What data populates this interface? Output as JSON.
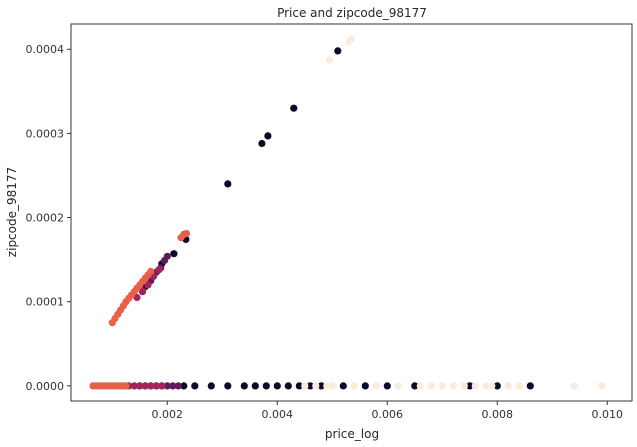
{
  "chart_data": {
    "type": "scatter",
    "title": "Price and zipcode_98177",
    "xlabel": "price_log",
    "ylabel": "zipcode_98177",
    "xlim": [
      0.00025,
      0.01045
    ],
    "ylim": [
      -1.8e-05,
      0.00043
    ],
    "xticks": [
      {
        "value": 0.002,
        "label": "0.002"
      },
      {
        "value": 0.004,
        "label": "0.004"
      },
      {
        "value": 0.006,
        "label": "0.006"
      },
      {
        "value": 0.008,
        "label": "0.008"
      },
      {
        "value": 0.01,
        "label": "0.010"
      }
    ],
    "yticks": [
      {
        "value": 0.0,
        "label": "0.0000"
      },
      {
        "value": 0.0001,
        "label": "0.0001"
      },
      {
        "value": 0.0002,
        "label": "0.0002"
      },
      {
        "value": 0.0003,
        "label": "0.0003"
      },
      {
        "value": 0.0004,
        "label": "0.0004"
      }
    ],
    "grid": false,
    "legend": "none",
    "colors": {
      "near_black": "#0d0a29",
      "purple": "#5e1e5b",
      "magenta": "#a3245c",
      "coral": "#e8604a",
      "cream": "#faebdd",
      "frame": "#333333"
    },
    "series": [
      {
        "color": "near_black",
        "points": [
          [
            0.0016,
            0.000118
          ],
          [
            0.0017,
            0.00013
          ],
          [
            0.0019,
            0.000145
          ],
          [
            0.00212,
            0.000157
          ],
          [
            0.00234,
            0.000174
          ],
          [
            0.0031,
            0.00024
          ],
          [
            0.00372,
            0.000288
          ],
          [
            0.00383,
            0.000297
          ],
          [
            0.0043,
            0.00033
          ],
          [
            0.0051,
            0.000398
          ],
          [
            0.0023,
            0.0
          ],
          [
            0.0025,
            0.0
          ],
          [
            0.0028,
            0.0
          ],
          [
            0.0031,
            0.0
          ],
          [
            0.0034,
            0.0
          ],
          [
            0.0036,
            0.0
          ],
          [
            0.0038,
            0.0
          ],
          [
            0.004,
            0.0
          ],
          [
            0.0042,
            0.0
          ],
          [
            0.0044,
            0.0
          ],
          [
            0.0046,
            0.0
          ],
          [
            0.0048,
            0.0
          ],
          [
            0.0052,
            0.0
          ],
          [
            0.0056,
            0.0
          ],
          [
            0.006,
            0.0
          ],
          [
            0.0065,
            0.0
          ],
          [
            0.0075,
            0.0
          ],
          [
            0.008,
            0.0
          ],
          [
            0.0086,
            0.0
          ]
        ]
      },
      {
        "color": "purple",
        "points": [
          [
            0.00155,
            0.000112
          ],
          [
            0.0017,
            0.000125
          ],
          [
            0.0018,
            0.000135
          ],
          [
            0.00188,
            0.00014
          ],
          [
            0.00195,
            0.000149
          ],
          [
            0.002,
            0.000154
          ],
          [
            0.0015,
            0.0
          ],
          [
            0.0016,
            0.0
          ],
          [
            0.0017,
            0.0
          ],
          [
            0.0018,
            0.0
          ],
          [
            0.0019,
            0.0
          ],
          [
            0.002,
            0.0
          ],
          [
            0.0021,
            0.0
          ],
          [
            0.0022,
            0.0
          ]
        ]
      },
      {
        "color": "magenta",
        "points": [
          [
            0.00145,
            0.000105
          ],
          [
            0.00155,
            0.000113
          ],
          [
            0.00165,
            0.00012
          ],
          [
            0.00175,
            0.00013
          ],
          [
            0.00185,
            0.000138
          ],
          [
            0.0013,
            0.0
          ],
          [
            0.0014,
            0.0
          ],
          [
            0.0015,
            0.0
          ],
          [
            0.0016,
            0.0
          ],
          [
            0.0017,
            0.0
          ],
          [
            0.0018,
            0.0
          ],
          [
            0.0019,
            0.0
          ]
        ]
      },
      {
        "color": "coral",
        "points": [
          [
            0.001,
            7.5e-05
          ],
          [
            0.00105,
            8e-05
          ],
          [
            0.0011,
            8.5e-05
          ],
          [
            0.00115,
            9e-05
          ],
          [
            0.0012,
            9.5e-05
          ],
          [
            0.00125,
            0.0001
          ],
          [
            0.0013,
            0.000104
          ],
          [
            0.00135,
            0.000108
          ],
          [
            0.0014,
            0.000112
          ],
          [
            0.00145,
            0.000116
          ],
          [
            0.0015,
            0.00012
          ],
          [
            0.00155,
            0.000124
          ],
          [
            0.0016,
            0.000128
          ],
          [
            0.00165,
            0.000132
          ],
          [
            0.0017,
            0.000136
          ],
          [
            0.00225,
            0.000176
          ],
          [
            0.0023,
            0.00018
          ],
          [
            0.00235,
            0.000181
          ],
          [
            0.00065,
            0.0
          ],
          [
            0.0007,
            0.0
          ],
          [
            0.00075,
            0.0
          ],
          [
            0.0008,
            0.0
          ],
          [
            0.00085,
            0.0
          ],
          [
            0.0009,
            0.0
          ],
          [
            0.00095,
            0.0
          ],
          [
            0.001,
            0.0
          ],
          [
            0.00105,
            0.0
          ],
          [
            0.0011,
            0.0
          ],
          [
            0.00115,
            0.0
          ],
          [
            0.0012,
            0.0
          ],
          [
            0.00125,
            0.0
          ]
        ]
      },
      {
        "color": "cream",
        "points": [
          [
            0.00495,
            0.000387
          ],
          [
            0.0053,
            0.000409
          ],
          [
            0.00535,
            0.000412
          ],
          [
            0.0045,
            0.0
          ],
          [
            0.0047,
            0.0
          ],
          [
            0.0049,
            0.0
          ],
          [
            0.005,
            0.0
          ],
          [
            0.0054,
            0.0
          ],
          [
            0.0058,
            0.0
          ],
          [
            0.0062,
            0.0
          ],
          [
            0.0066,
            0.0
          ],
          [
            0.0068,
            0.0
          ],
          [
            0.007,
            0.0
          ],
          [
            0.0072,
            0.0
          ],
          [
            0.0074,
            0.0
          ],
          [
            0.0076,
            0.0
          ],
          [
            0.0078,
            0.0
          ],
          [
            0.0079,
            0.0
          ],
          [
            0.0082,
            0.0
          ],
          [
            0.0084,
            0.0
          ],
          [
            0.0094,
            0.0
          ],
          [
            0.0099,
            0.0
          ]
        ]
      }
    ]
  }
}
